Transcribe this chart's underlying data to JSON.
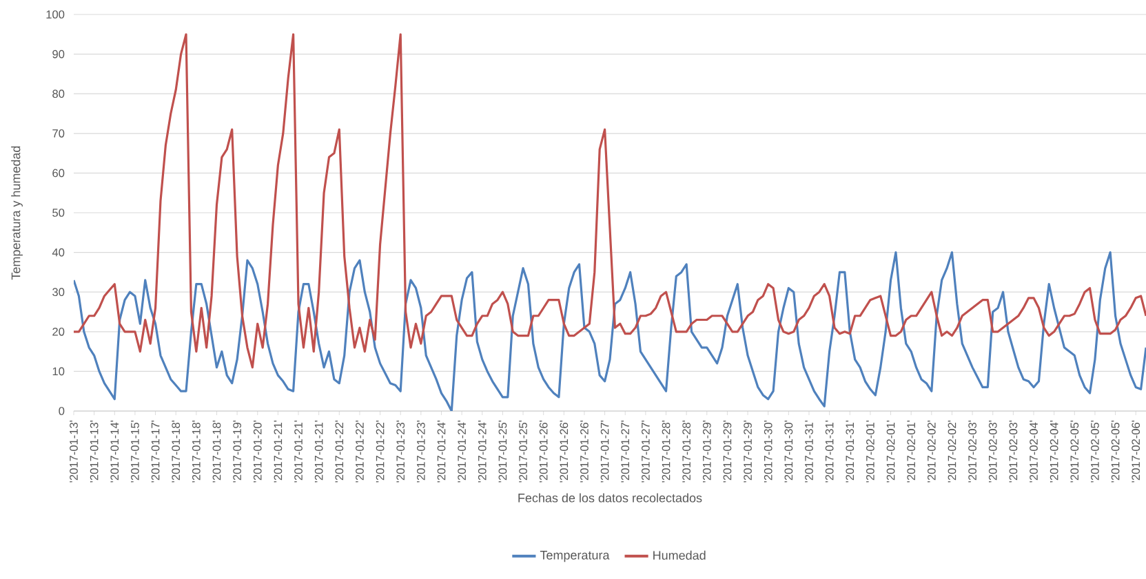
{
  "chart_data": {
    "type": "line",
    "xlabel": "Fechas de los datos recolectados",
    "ylabel": "Temperatura y humedad",
    "categories": [
      "'2017-01-13'",
      null,
      null,
      null,
      "'2017-01-13'",
      null,
      null,
      null,
      "'2017-01-14'",
      null,
      null,
      null,
      "'2017-01-15'",
      null,
      null,
      null,
      "'2017-01-17'",
      null,
      null,
      null,
      "'2017-01-18'",
      null,
      null,
      null,
      "'2017-01-18'",
      null,
      null,
      null,
      "'2017-01-18'",
      null,
      null,
      null,
      "'2017-01-19'",
      null,
      null,
      null,
      "'2017-01-20'",
      null,
      null,
      null,
      "'2017-01-21'",
      null,
      null,
      null,
      "'2017-01-21'",
      null,
      null,
      null,
      "'2017-01-21'",
      null,
      null,
      null,
      "'2017-01-22'",
      null,
      null,
      null,
      "'2017-01-22'",
      null,
      null,
      null,
      "'2017-01-22'",
      null,
      null,
      null,
      "'2017-01-23'",
      null,
      null,
      null,
      "'2017-01-23'",
      null,
      null,
      null,
      "'2017-01-24'",
      null,
      null,
      null,
      "'2017-01-24'",
      null,
      null,
      null,
      "'2017-01-24'",
      null,
      null,
      null,
      "'2017-01-25'",
      null,
      null,
      null,
      "'2017-01-25'",
      null,
      null,
      null,
      "'2017-01-26'",
      null,
      null,
      null,
      "'2017-01-26'",
      null,
      null,
      null,
      "'2017-01-26'",
      null,
      null,
      null,
      "'2017-01-27'",
      null,
      null,
      null,
      "'2017-01-27'",
      null,
      null,
      null,
      "'2017-01-27'",
      null,
      null,
      null,
      "'2017-01-28'",
      null,
      null,
      null,
      "'2017-01-28'",
      null,
      null,
      null,
      "'2017-01-29'",
      null,
      null,
      null,
      "'2017-01-29'",
      null,
      null,
      null,
      "'2017-01-29'",
      null,
      null,
      null,
      "'2017-01-30'",
      null,
      null,
      null,
      "'2017-01-30'",
      null,
      null,
      null,
      "'2017-01-31'",
      null,
      null,
      null,
      "'2017-01-31'",
      null,
      null,
      null,
      "'2017-01-31'",
      null,
      null,
      null,
      "'2017-02-01'",
      null,
      null,
      null,
      "'2017-02-01'",
      null,
      null,
      null,
      "'2017-02-01'",
      null,
      null,
      null,
      "'2017-02-02'",
      null,
      null,
      null,
      "'2017-02-02'",
      null,
      null,
      null,
      "'2017-02-03'",
      null,
      null,
      null,
      "'2017-02-03'",
      null,
      null,
      null,
      "'2017-02-03'",
      null,
      null,
      null,
      "'2017-02-04'",
      null,
      null,
      null,
      "'2017-02-04'",
      null,
      null,
      null,
      "'2017-02-05'",
      null,
      null,
      null,
      "'2017-02-05'",
      null,
      null,
      null,
      "'2017-02-05'",
      null,
      null,
      null,
      "'2017-02-06'",
      null,
      null
    ],
    "series": [
      {
        "name": "Temperatura",
        "color": "#4f81bd",
        "values": [
          33,
          29,
          20,
          16,
          14,
          10,
          7,
          5,
          3,
          23,
          28,
          30,
          29,
          22,
          33,
          26,
          22,
          14,
          11,
          8,
          6.5,
          5,
          5,
          20,
          32,
          32,
          27,
          19,
          11,
          15,
          9,
          7,
          13,
          24,
          38,
          36,
          32,
          25,
          17,
          12,
          9,
          7.5,
          5.5,
          5,
          25,
          32,
          32,
          25,
          17,
          11,
          15,
          8,
          7,
          14,
          30,
          36,
          38,
          30,
          25,
          16,
          12,
          9.5,
          7,
          6.5,
          5,
          27,
          33,
          31,
          26,
          14,
          11,
          8,
          4.5,
          2.5,
          0,
          19,
          28,
          33.5,
          35,
          17.5,
          13,
          10,
          7.5,
          5.5,
          3.5,
          3.5,
          24,
          30,
          36,
          32,
          17,
          11,
          8,
          6,
          4.5,
          3.5,
          22,
          31,
          35,
          37,
          21,
          20,
          17,
          9,
          7.5,
          13,
          27,
          28,
          31,
          35,
          27,
          15,
          13,
          11,
          9,
          7,
          5,
          21,
          34,
          35,
          37,
          20,
          18,
          16,
          16,
          14,
          12,
          16,
          24,
          28,
          32,
          21,
          14,
          10,
          6,
          4,
          3,
          5,
          20,
          26,
          31,
          30,
          17,
          11,
          8,
          5,
          3,
          1.2,
          15,
          24,
          35,
          35,
          20,
          13,
          11,
          7.5,
          5.5,
          4,
          11,
          20,
          33,
          40,
          26,
          17,
          15,
          11,
          8,
          7,
          5,
          24,
          33,
          36,
          40,
          27,
          17,
          14,
          11,
          8.5,
          6,
          6,
          25,
          26,
          30,
          20,
          15.5,
          11,
          8,
          7.5,
          6,
          7.5,
          22,
          32,
          26,
          21,
          16,
          15,
          14,
          9,
          6,
          4.5,
          13,
          28,
          36,
          40,
          24,
          17,
          13,
          9,
          6,
          5.5,
          16
        ]
      },
      {
        "name": "Humedad",
        "color": "#c0504d",
        "values": [
          20,
          20,
          22,
          24,
          24,
          26,
          29,
          30.5,
          32,
          22,
          20,
          20,
          20,
          15,
          23,
          17,
          26,
          53,
          67,
          75,
          81,
          90,
          95,
          25,
          15,
          26,
          16,
          29,
          52,
          64,
          66,
          71,
          39,
          24,
          16,
          11,
          22,
          16,
          27,
          47,
          62,
          70,
          84,
          95,
          27,
          16,
          26,
          15,
          30,
          55,
          64,
          65,
          71,
          39,
          26,
          16,
          21,
          15,
          23,
          18,
          42,
          56,
          70,
          82,
          95,
          25,
          16,
          22,
          17,
          24,
          25,
          27,
          29,
          29,
          29,
          23,
          21,
          19,
          19,
          22,
          24,
          24,
          27,
          28,
          30,
          27,
          20,
          19,
          19,
          19,
          24,
          24,
          26,
          28,
          28,
          28,
          22,
          19,
          19,
          20,
          21,
          22,
          35,
          66,
          71,
          46,
          21,
          22,
          19.5,
          19.5,
          21,
          24,
          24,
          24.5,
          26,
          29,
          30,
          25,
          20,
          20,
          20,
          22,
          23,
          23,
          23,
          24,
          24,
          24,
          22,
          20,
          20,
          22,
          24,
          25,
          28,
          29,
          32,
          31,
          23,
          20,
          19.5,
          20,
          23,
          24,
          26,
          29,
          30,
          32,
          29,
          21,
          19.5,
          20,
          19.5,
          24,
          24,
          26,
          28,
          28.5,
          29,
          24,
          19,
          19,
          20,
          23,
          24,
          24,
          26,
          28,
          30,
          24,
          19,
          20,
          19,
          21,
          24,
          25,
          26,
          27,
          28,
          28,
          20,
          20,
          21,
          22,
          23,
          24,
          26,
          28.5,
          28.5,
          26,
          21,
          19,
          20,
          22,
          24,
          24,
          24.5,
          27,
          30,
          31,
          23,
          19.5,
          19.5,
          19.5,
          20.5,
          23,
          24,
          26,
          28.5,
          29,
          24
        ]
      }
    ],
    "ylim": [
      0,
      100
    ],
    "yticks": [
      0,
      10,
      20,
      30,
      40,
      50,
      60,
      70,
      80,
      90,
      100
    ],
    "grid": "y",
    "legend": "bottom"
  }
}
